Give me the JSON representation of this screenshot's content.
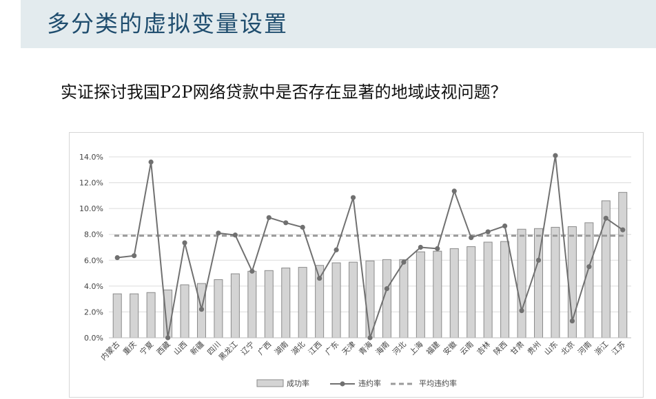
{
  "header": {
    "title": "多分类的虚拟变量设置"
  },
  "question": "实证探讨我国P2P网络贷款中是否存在显著的地域歧视问题？",
  "chart_data": {
    "type": "bar",
    "categories": [
      "内蒙古",
      "重庆",
      "宁夏",
      "西藏",
      "山西",
      "新疆",
      "四川",
      "黑龙江",
      "辽宁",
      "广西",
      "湖南",
      "湖北",
      "江西",
      "广东",
      "天津",
      "青海",
      "海南",
      "河北",
      "上海",
      "福建",
      "安徽",
      "云南",
      "吉林",
      "陕西",
      "甘肃",
      "贵州",
      "山东",
      "北京",
      "河南",
      "浙江",
      "江苏"
    ],
    "series": [
      {
        "name": "成功率",
        "kind": "bar",
        "values": [
          3.4,
          3.4,
          3.5,
          3.7,
          4.1,
          4.2,
          4.5,
          4.95,
          5.15,
          5.2,
          5.4,
          5.45,
          5.6,
          5.8,
          5.85,
          5.95,
          6.05,
          6.05,
          6.65,
          6.7,
          6.9,
          7.05,
          7.4,
          7.45,
          8.4,
          8.45,
          8.55,
          8.6,
          8.9,
          10.6,
          11.25
        ]
      },
      {
        "name": "违约率",
        "kind": "line",
        "values": [
          6.2,
          6.35,
          13.6,
          0.0,
          7.35,
          2.2,
          8.1,
          7.95,
          5.15,
          9.3,
          8.9,
          8.55,
          4.6,
          6.8,
          10.85,
          0.0,
          3.8,
          5.85,
          7.0,
          6.9,
          11.35,
          7.75,
          8.2,
          8.65,
          2.1,
          6.0,
          14.1,
          1.3,
          5.5,
          9.25,
          8.35
        ]
      },
      {
        "name": "平均违约率",
        "kind": "reference-line",
        "value": 7.9
      }
    ],
    "ylim": [
      0,
      14
    ],
    "yticks": [
      "0.0%",
      "2.0%",
      "4.0%",
      "6.0%",
      "8.0%",
      "10.0%",
      "12.0%",
      "14.0%"
    ],
    "xlabel": "",
    "ylabel": "",
    "grid": true,
    "legend_position": "bottom",
    "colors": {
      "bar_fill": "#d4d4d4",
      "bar_stroke": "#8a8a8a",
      "line": "#707070",
      "avg_line": "#9a9a9a",
      "grid": "#dcdcdc"
    }
  }
}
